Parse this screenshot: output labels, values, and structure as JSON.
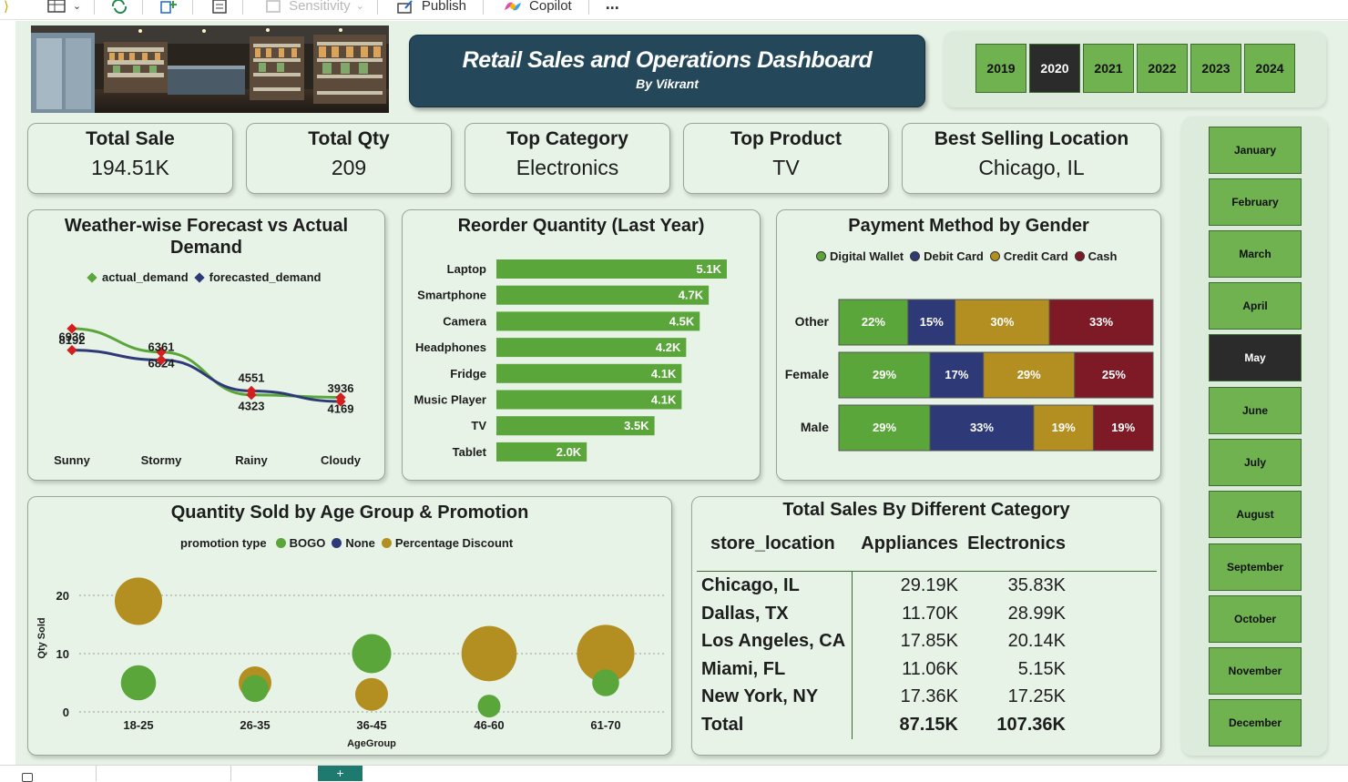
{
  "ribbon": {
    "items": [
      "Sensitivity",
      "Publish",
      "Copilot",
      "..."
    ]
  },
  "title": {
    "main": "Retail Sales and Operations Dashboard",
    "sub": "By Vikrant"
  },
  "years": {
    "items": [
      "2019",
      "2020",
      "2021",
      "2022",
      "2023",
      "2024"
    ],
    "selected": "2020"
  },
  "months": {
    "items": [
      "January",
      "February",
      "March",
      "April",
      "May",
      "June",
      "July",
      "August",
      "September",
      "October",
      "November",
      "December"
    ],
    "selected": "May"
  },
  "kpis": [
    {
      "label": "Total Sale",
      "value": "194.51K"
    },
    {
      "label": "Total Qty",
      "value": "209"
    },
    {
      "label": "Top Category",
      "value": "Electronics"
    },
    {
      "label": "Top Product",
      "value": "TV"
    },
    {
      "label": "Best Selling Location",
      "value": "Chicago, IL"
    }
  ],
  "chart_data": [
    {
      "type": "line",
      "title": "Weather-wise Forecast vs Actual Demand",
      "categories": [
        "Sunny",
        "Stormy",
        "Rainy",
        "Cloudy"
      ],
      "series": [
        {
          "name": "actual_demand",
          "color": "#5aa63a",
          "values": [
            8192,
            6824,
            4323,
            4169
          ]
        },
        {
          "name": "forecasted_demand",
          "color": "#2e3a78",
          "values": [
            6936,
            6361,
            4551,
            3936
          ]
        }
      ],
      "legend": "top"
    },
    {
      "type": "bar",
      "orientation": "horizontal",
      "title": "Reorder Quantity (Last Year)",
      "categories": [
        "Laptop",
        "Smartphone",
        "Camera",
        "Headphones",
        "Fridge",
        "Music Player",
        "TV",
        "Tablet"
      ],
      "values": [
        5.1,
        4.7,
        4.5,
        4.2,
        4.1,
        4.1,
        3.5,
        2.0
      ],
      "labels": [
        "5.1K",
        "4.7K",
        "4.5K",
        "4.2K",
        "4.1K",
        "4.1K",
        "3.5K",
        "2.0K"
      ],
      "color": "#5aa63a"
    },
    {
      "type": "bar",
      "stacked": "100%",
      "orientation": "horizontal",
      "title": "Payment Method by Gender",
      "categories": [
        "Other",
        "Female",
        "Male"
      ],
      "series": [
        {
          "name": "Digital Wallet",
          "color": "#5aa63a",
          "values": [
            22,
            29,
            29
          ]
        },
        {
          "name": "Debit Card",
          "color": "#2e3a78",
          "values": [
            15,
            17,
            33
          ]
        },
        {
          "name": "Credit Card",
          "color": "#b38f22",
          "values": [
            30,
            29,
            19
          ]
        },
        {
          "name": "Cash",
          "color": "#7e1a26",
          "values": [
            33,
            25,
            19
          ]
        }
      ],
      "legend": "top"
    },
    {
      "type": "scatter",
      "bubble": true,
      "title": "Quantity Sold by Age Group & Promotion",
      "legend_title": "promotion type",
      "xlabel": "AgeGroup",
      "ylabel": "Qty Sold",
      "categories": [
        "18-25",
        "26-35",
        "36-45",
        "46-60",
        "61-70"
      ],
      "yticks": [
        0,
        10,
        20
      ],
      "ylim": [
        0,
        24
      ],
      "series": [
        {
          "name": "BOGO",
          "color": "#5aa63a",
          "points": [
            {
              "x": "18-25",
              "y": 5,
              "size": 5
            },
            {
              "x": "26-35",
              "y": 4,
              "size": 2
            },
            {
              "x": "36-45",
              "y": 10,
              "size": 7
            },
            {
              "x": "46-60",
              "y": 1,
              "size": 1
            },
            {
              "x": "61-70",
              "y": 5,
              "size": 2
            }
          ]
        },
        {
          "name": "None",
          "color": "#2e3a78",
          "points": []
        },
        {
          "name": "Percentage Discount",
          "color": "#b38f22",
          "points": [
            {
              "x": "18-25",
              "y": 19,
              "size": 12
            },
            {
              "x": "26-35",
              "y": 5,
              "size": 4
            },
            {
              "x": "36-45",
              "y": 3,
              "size": 4
            },
            {
              "x": "46-60",
              "y": 10,
              "size": 18
            },
            {
              "x": "61-70",
              "y": 10,
              "size": 20
            }
          ]
        }
      ]
    },
    {
      "type": "table",
      "title": "Total Sales By Different Category",
      "columns": [
        "store_location",
        "Appliances",
        "Electronics"
      ],
      "rows": [
        [
          "Chicago, IL",
          "29.19K",
          "35.83K"
        ],
        [
          "Dallas, TX",
          "11.70K",
          "28.99K"
        ],
        [
          "Los Angeles, CA",
          "17.85K",
          "20.14K"
        ],
        [
          "Miami, FL",
          "11.06K",
          "5.15K"
        ],
        [
          "New York, NY",
          "17.36K",
          "17.25K"
        ]
      ],
      "total": [
        "Total",
        "87.15K",
        "107.36K"
      ]
    }
  ]
}
